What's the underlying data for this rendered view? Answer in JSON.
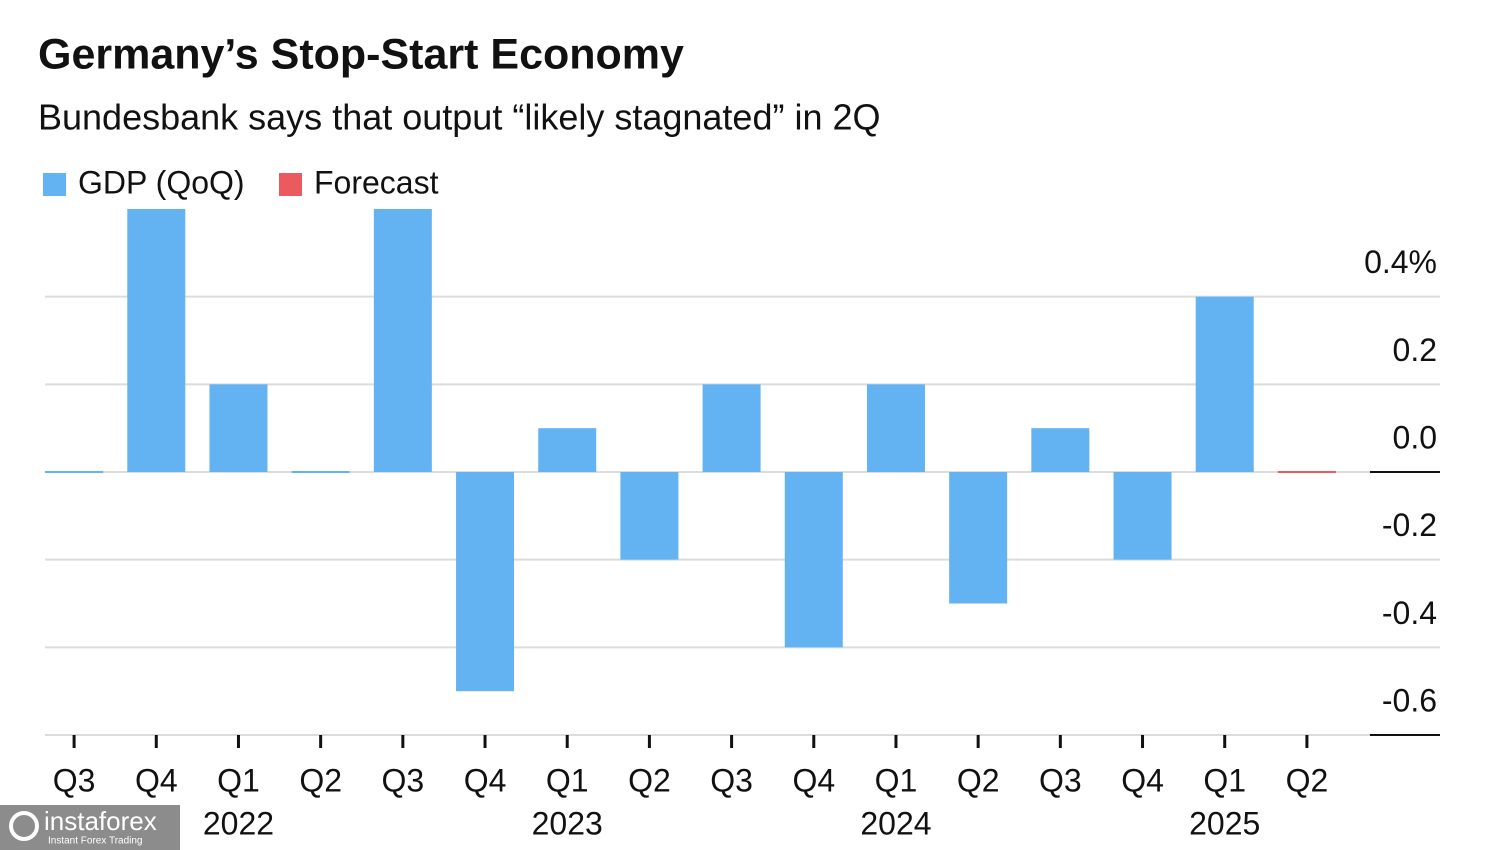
{
  "chart_data": {
    "type": "bar",
    "title": "Germany’s Stop-Start Economy",
    "subtitle": "Bundesbank says that output “likely stagnated” in 2Q",
    "categories": [
      "Q3",
      "Q4",
      "Q1",
      "Q2",
      "Q3",
      "Q4",
      "Q1",
      "Q2",
      "Q3",
      "Q4",
      "Q1",
      "Q2",
      "Q3",
      "Q4",
      "Q1",
      "Q2"
    ],
    "years": [
      null,
      null,
      "2022",
      null,
      null,
      null,
      "2023",
      null,
      null,
      null,
      "2024",
      null,
      null,
      null,
      "2025",
      null
    ],
    "series": [
      {
        "name": "GDP (QoQ)",
        "color": "#63b3f2",
        "values": [
          0.0,
          0.6,
          0.2,
          0.0,
          0.6,
          -0.5,
          0.1,
          -0.2,
          0.2,
          -0.4,
          0.2,
          -0.3,
          0.1,
          -0.2,
          0.4,
          null
        ]
      },
      {
        "name": "Forecast",
        "color": "#ea5a5e",
        "values": [
          null,
          null,
          null,
          null,
          null,
          null,
          null,
          null,
          null,
          null,
          null,
          null,
          null,
          null,
          null,
          0.0
        ]
      }
    ],
    "ylim": [
      -0.6,
      0.6
    ],
    "yticks": [
      {
        "value": 0.4,
        "label": "0.4%"
      },
      0.2,
      {
        "value": 0,
        "label": "0.0"
      },
      -0.2,
      -0.4,
      -0.6
    ],
    "grid": true,
    "legend": "top-left"
  },
  "watermark": {
    "brand": "instaforex",
    "tagline": "Instant Forex Trading"
  }
}
